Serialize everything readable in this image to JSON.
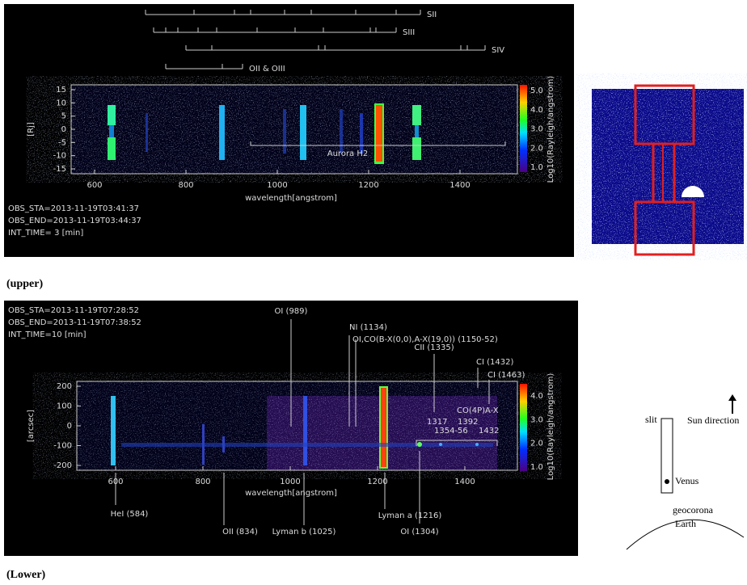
{
  "upper": {
    "line_ids": [
      "SII",
      "SIII",
      "SIV",
      "OII & OIII"
    ],
    "y_axis_label": "[Rj]",
    "yticks": [
      15,
      10,
      5,
      0,
      -5,
      -10,
      -15
    ],
    "xticks": [
      600,
      800,
      1000,
      1200,
      1400
    ],
    "x_axis_label": "wavelength[angstrom]",
    "colorbar_ticks": [
      "5.0",
      "4.0",
      "3.0",
      "2.0",
      "1.0"
    ],
    "colorbar_label": "Log10(Rayleigh/angstrom)",
    "annotation": "Aurora H2",
    "obs": [
      "OBS_STA=2013-11-19T03:41:37",
      "OBS_END=2013-11-19T03:44:37",
      "INT_TIME= 3 [min]"
    ]
  },
  "upper_caption": "(upper)",
  "lower": {
    "obs": [
      "OBS_STA=2013-11-19T07:28:52",
      "OBS_END=2013-11-19T07:38:52",
      "INT_TIME=10 [min]"
    ],
    "y_axis_label": "[arcsec]",
    "yticks": [
      200,
      100,
      0,
      -100,
      -200
    ],
    "xticks": [
      600,
      800,
      1000,
      1200,
      1400
    ],
    "x_axis_label": "wavelength[angstrom]",
    "colorbar_ticks": [
      "4.0",
      "3.0",
      "2.0",
      "1.0"
    ],
    "colorbar_label": "Log10(Rayleigh/angstrom)",
    "top_labels": [
      "OI (989)",
      "NI (1134)",
      "OI,CO(B-X(0,0),A-X(19,0)) (1150-52)",
      "CII (1335)",
      "CI (1432)",
      "CI (1463)",
      "CO(4P)A-X",
      "1317",
      "1392",
      "1354-56",
      "1432"
    ],
    "bottom_labels": [
      "HeI (584)",
      "OII (834)",
      "Lyman b (1025)",
      "Lyman a (1216)",
      "OI (1304)"
    ]
  },
  "lower_caption": "(Lower)",
  "diagram": {
    "slit": "slit",
    "sun": "Sun direction",
    "venus": "Venus",
    "geocorona": "geocorona",
    "earth": "Earth"
  }
}
